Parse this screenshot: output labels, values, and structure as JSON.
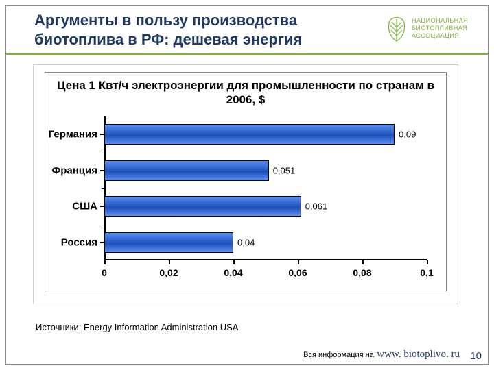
{
  "title": "Аргументы в пользу производства биотоплива в РФ: дешевая энергия",
  "logo": {
    "line1": "НАЦИОНАЛЬНАЯ",
    "line2": "БИОТОПЛИВНАЯ",
    "line3": "АССОЦИАЦИЯ",
    "leaf_stroke": "#7eb338"
  },
  "chart": {
    "type": "bar",
    "orientation": "horizontal",
    "title": "Цена 1 Квт/ч электроэнергии для промышленности по странам в 2006, $",
    "title_fontsize": 17,
    "xlim": [
      0,
      0.1
    ],
    "xtick_step": 0.02,
    "xticks": [
      "0",
      "0,02",
      "0,04",
      "0,06",
      "0,08",
      "0,1"
    ],
    "categories": [
      "Германия",
      "Франция",
      "США",
      "Россия"
    ],
    "values": [
      0.09,
      0.051,
      0.061,
      0.04
    ],
    "value_labels": [
      "0,09",
      "0,051",
      "0,061",
      "0,04"
    ],
    "bar_fill_top": "#5b8ff0",
    "bar_fill_mid": "#1d4fb8",
    "border_color": "#000000",
    "background_color": "#ffffff",
    "axis_color": "#000000"
  },
  "source": "Источники: Energy Information Administration USA",
  "footer_info": "Вся информация на",
  "footer_url": "www. biotoplivo. ru",
  "page_number": "10",
  "colors": {
    "title": "#203864",
    "accent_green": "#7eb338"
  }
}
